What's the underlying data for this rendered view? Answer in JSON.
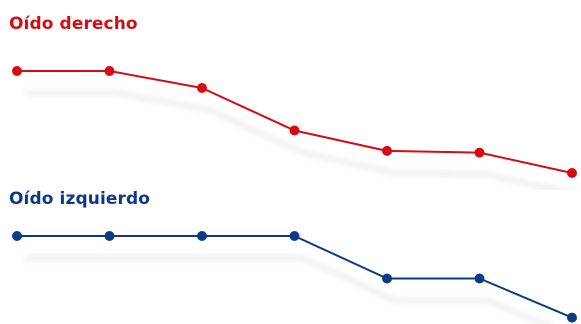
{
  "colors": {
    "right": "#d40c14",
    "left": "#0c3a87",
    "shadow": "#cfcfcf"
  },
  "chart_data": [
    {
      "type": "line",
      "title": "Oído derecho",
      "x": [
        1,
        2,
        3,
        4,
        5,
        6,
        7
      ],
      "series": [
        {
          "values": [
            0,
            0,
            -10,
            -35,
            -47,
            -48,
            -60
          ]
        }
      ],
      "ylim": [
        -60,
        0
      ],
      "grid": false,
      "axes_visible": false
    },
    {
      "type": "line",
      "title": "Oído izquierdo",
      "x": [
        1,
        2,
        3,
        4,
        5,
        6,
        7
      ],
      "series": [
        {
          "values": [
            0,
            0,
            0,
            0,
            -25,
            -25,
            -48
          ]
        }
      ],
      "ylim": [
        -60,
        0
      ],
      "grid": false,
      "axes_visible": false
    }
  ]
}
